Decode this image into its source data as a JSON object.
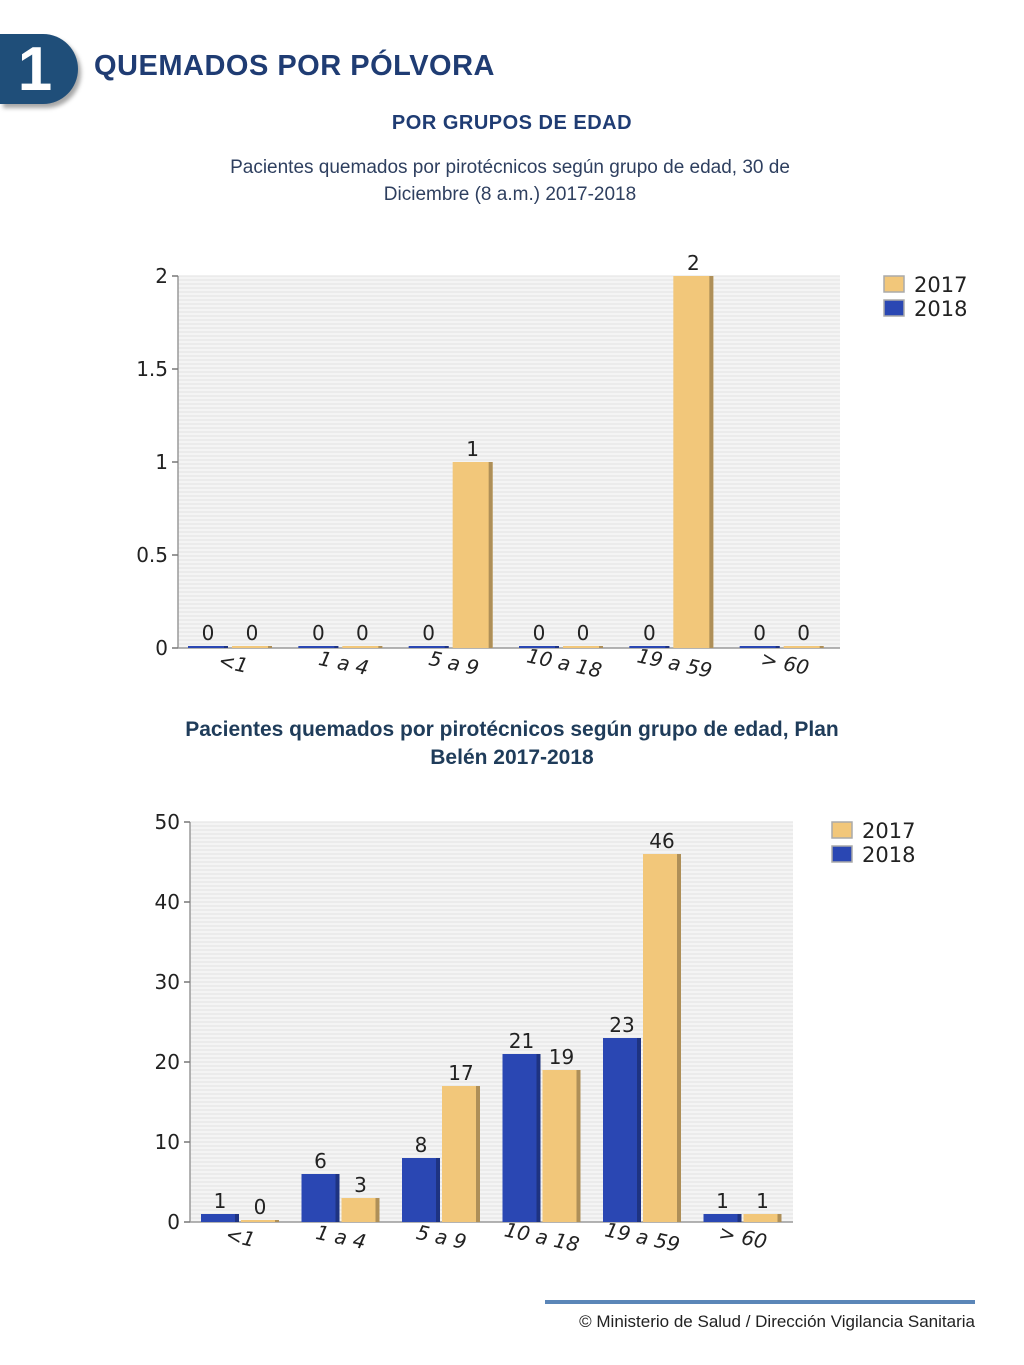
{
  "header": {
    "badge_number": "1",
    "title": "QUEMADOS POR PÓLVORA",
    "subtitle": "POR GRUPOS DE EDAD"
  },
  "footer": {
    "text": "© Ministerio de Salud / Dirección Vigilancia Sanitaria"
  },
  "colors": {
    "series_2017": "#f2c77a",
    "series_2018": "#2a47b3",
    "title_blue": "#1f3c73"
  },
  "chart_data": [
    {
      "type": "bar",
      "title": "Pacientes quemados por pirotécnicos según grupo de edad, 30 de Diciembre (8 a.m.) 2017-2018",
      "categories": [
        "<1",
        "1 a 4",
        "5 a 9",
        "10 a 18",
        "19 a 59",
        "> 60"
      ],
      "series": [
        {
          "name": "2018",
          "values": [
            0,
            0,
            0,
            0,
            0,
            0
          ]
        },
        {
          "name": "2017",
          "values": [
            0,
            0,
            1,
            0,
            2,
            0
          ]
        }
      ],
      "ylim": [
        0,
        2
      ],
      "yticks": [
        "0",
        "0.5",
        "1",
        "1.5",
        "2"
      ],
      "legend": "top-right",
      "legend_items": [
        "2017",
        "2018"
      ],
      "grid": true
    },
    {
      "type": "bar",
      "title": "Pacientes quemados por pirotécnicos según grupo de edad, Plan Belén 2017-2018",
      "categories": [
        "<1",
        "1 a 4",
        "5 a 9",
        "10 a 18",
        "19 a 59",
        "> 60"
      ],
      "series": [
        {
          "name": "2018",
          "values": [
            1,
            6,
            8,
            21,
            23,
            1
          ]
        },
        {
          "name": "2017",
          "values": [
            0,
            3,
            17,
            19,
            46,
            1
          ]
        }
      ],
      "ylim": [
        0,
        50
      ],
      "yticks": [
        "0",
        "10",
        "20",
        "30",
        "40",
        "50"
      ],
      "legend": "top-right",
      "legend_items": [
        "2017",
        "2018"
      ],
      "grid": true
    }
  ]
}
